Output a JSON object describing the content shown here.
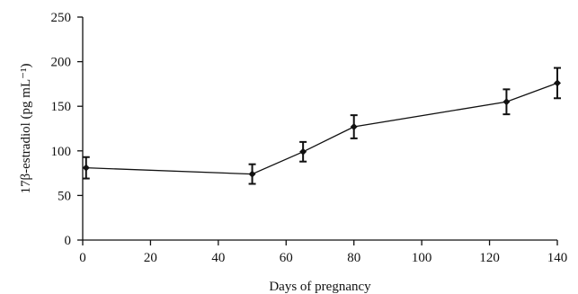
{
  "chart_data": {
    "type": "line",
    "xlabel": "Days of pregnancy",
    "ylabel": "17β-estradiol (pg mL⁻¹)",
    "xlim": [
      0,
      140
    ],
    "ylim": [
      0,
      250
    ],
    "xticks": [
      0,
      20,
      40,
      60,
      80,
      100,
      120,
      140
    ],
    "yticks": [
      0,
      50,
      100,
      150,
      200,
      250
    ],
    "grid": false,
    "legend": "none",
    "series": [
      {
        "x": [
          1,
          50,
          65,
          80,
          125,
          140
        ],
        "y": [
          81,
          74,
          99,
          127,
          155,
          176
        ],
        "error": [
          12,
          11,
          11,
          13,
          14,
          17
        ]
      }
    ]
  }
}
